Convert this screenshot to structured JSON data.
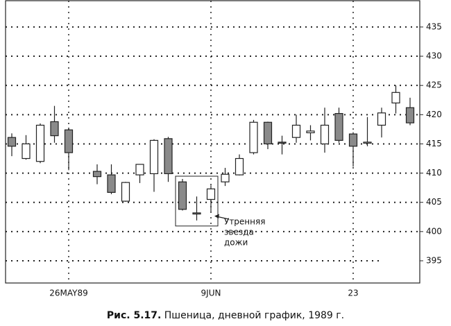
{
  "chart_data": {
    "type": "candlestick",
    "categories": [
      null,
      null,
      null,
      null,
      "26MAY89",
      null,
      null,
      null,
      null,
      null,
      null,
      null,
      null,
      null,
      "9JUN",
      null,
      null,
      null,
      null,
      null,
      null,
      null,
      null,
      null,
      "23",
      null,
      null,
      null,
      null
    ],
    "open": [
      416.1,
      412.5,
      412.0,
      418.8,
      417.4,
      null,
      410.3,
      409.7,
      405.2,
      409.7,
      409.9,
      415.9,
      408.5,
      403.2,
      405.5,
      408.5,
      409.7,
      413.5,
      418.7,
      415.3,
      416.1,
      416.9,
      415.0,
      420.2,
      416.7,
      415.2,
      418.2,
      422.0,
      421.2
    ],
    "high": [
      416.8,
      416.5,
      418.5,
      421.5,
      417.8,
      null,
      411.5,
      411.5,
      408.5,
      411.5,
      415.8,
      416.2,
      409.0,
      406.0,
      407.9,
      410.9,
      413.2,
      419.1,
      418.8,
      416.4,
      420.0,
      418.2,
      421.2,
      421.2,
      417.0,
      419.6,
      421.2,
      425.0,
      422.9
    ],
    "low": [
      412.9,
      412.3,
      411.7,
      415.2,
      410.5,
      null,
      408.1,
      406.4,
      405.1,
      408.3,
      406.8,
      408.5,
      403.6,
      401.9,
      403.4,
      407.8,
      409.6,
      413.2,
      414.1,
      413.2,
      415.2,
      415.6,
      413.5,
      415.2,
      411.1,
      414.6,
      416.1,
      420.2,
      418.2
    ],
    "close": [
      414.6,
      415.0,
      418.2,
      416.4,
      413.5,
      null,
      409.4,
      406.7,
      408.4,
      411.5,
      415.6,
      409.9,
      403.8,
      403.0,
      407.3,
      409.8,
      412.5,
      418.7,
      415.0,
      415.2,
      418.2,
      417.2,
      418.2,
      415.6,
      414.6,
      415.3,
      420.3,
      423.8,
      418.6
    ],
    "up_color": "#ffffff",
    "down_color": "#8a8a8a",
    "ylim": [
      391.2,
      439.5
    ],
    "yticks": [
      395,
      400,
      405,
      410,
      415,
      420,
      425,
      430,
      435
    ],
    "grid": true,
    "annotation": [
      "Утренняя",
      "звезда",
      "дожи"
    ],
    "caption_label": "Рис. 5.17.",
    "caption": "Пшеница, дневной график, 1989 г."
  }
}
